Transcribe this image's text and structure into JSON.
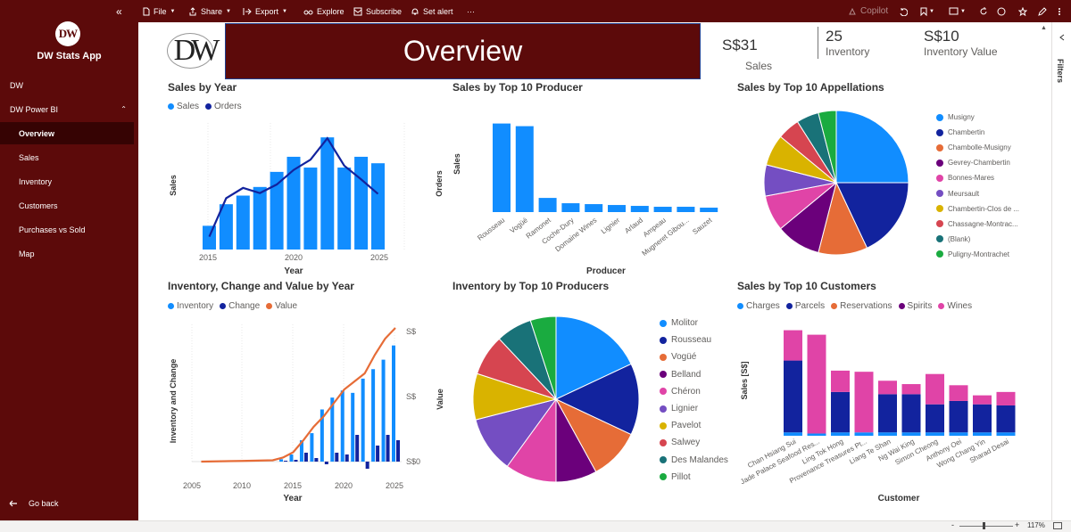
{
  "app": {
    "title": "DW Stats App",
    "logo_text": "DW"
  },
  "nav": {
    "collapse_icon": "«",
    "items": [
      {
        "label": "DW"
      },
      {
        "label": "DW Power BI",
        "chevron": "⌃"
      },
      {
        "label": "Overview"
      },
      {
        "label": "Sales"
      },
      {
        "label": "Inventory"
      },
      {
        "label": "Customers"
      },
      {
        "label": "Purchases vs Sold"
      },
      {
        "label": "Map"
      }
    ],
    "go_back": "Go back"
  },
  "toolbar": {
    "file": "File",
    "share": "Share",
    "export": "Export",
    "explore": "Explore",
    "subscribe": "Subscribe",
    "set_alert": "Set alert",
    "more": "···",
    "copilot": "Copilot"
  },
  "filters": {
    "label": "Filters"
  },
  "status": {
    "zoom": "117%",
    "minus": "-",
    "plus": "+"
  },
  "header": {
    "logo": "DW",
    "banner": "Overview",
    "kpis": [
      {
        "value": "S$31",
        "label": "Sales"
      },
      {
        "value": "25",
        "label": "Inventory"
      },
      {
        "value": "S$10",
        "label": "Inventory Value"
      }
    ]
  },
  "colors": {
    "accent": "#5c0a0a",
    "nav_active": "#360303",
    "blue": "#118dff",
    "navy": "#12239e",
    "orange": "#e66c37",
    "purple": "#6b007b",
    "pink": "#e044a7",
    "violet": "#744ec2",
    "gold": "#d9b300",
    "red": "#d64550",
    "teal": "#197278",
    "green": "#1aab40"
  },
  "chart_data": [
    {
      "id": "sales_by_year",
      "type": "bar+line",
      "title": "Sales by Year",
      "legend": [
        "Sales",
        "Orders"
      ],
      "x": [
        2015,
        2016,
        2017,
        2018,
        2019,
        2020,
        2021,
        2022,
        2023,
        2024,
        2025
      ],
      "x_ticks": [
        "2015",
        "2020",
        "2025"
      ],
      "xlabel": "Year",
      "ylabel": "Sales",
      "series": [
        {
          "name": "Sales",
          "type": "bar",
          "values": [
            2.2,
            4.2,
            5.0,
            5.8,
            7.2,
            8.6,
            7.6,
            10.4,
            7.6,
            8.6,
            8.0
          ]
        },
        {
          "name": "Orders",
          "type": "line",
          "values": [
            1.5,
            6.0,
            7.2,
            6.6,
            7.6,
            9.3,
            10.5,
            13.0,
            9.8,
            8.2,
            6.5
          ]
        }
      ]
    },
    {
      "id": "sales_by_producer",
      "type": "bar",
      "title": "Sales by Top 10 Producer",
      "categories": [
        "Rousseau",
        "Vogüé",
        "Ramonet",
        "Coche-Dury",
        "Domaine Wines",
        "Lignier",
        "Arlaud",
        "Ampeau",
        "Mugneret Gibou...",
        "Sauzet"
      ],
      "values": [
        100,
        97,
        16,
        10,
        9,
        8,
        7,
        6,
        6,
        5
      ],
      "xlabel": "Producer",
      "ylabel": "Orders",
      "inner_label": "Sales"
    },
    {
      "id": "sales_by_appellation",
      "type": "pie",
      "title": "Sales by Top 10 Appellations",
      "categories": [
        "Musigny",
        "Chambertin",
        "Chambolle-Musigny",
        "Gevrey-Chambertin",
        "Bonnes-Mares",
        "Meursault",
        "Chambertin-Clos de ...",
        "Chassagne-Montrac...",
        "(Blank)",
        "Puligny-Montrachet"
      ],
      "values": [
        25,
        18,
        11,
        10,
        8,
        7,
        7,
        5,
        5,
        4
      ]
    },
    {
      "id": "inventory_change_value",
      "type": "bar+line",
      "title": "Inventory, Change and Value by Year",
      "legend": [
        "Inventory",
        "Change",
        "Value"
      ],
      "x_ticks": [
        "2005",
        "2010",
        "2015",
        "2020",
        "2025"
      ],
      "xlabel": "Year",
      "ylabel": "Inventory and Change",
      "y2_ticks": [
        "S$",
        "S$",
        "S$0"
      ],
      "years": [
        2014,
        2015,
        2016,
        2017,
        2018,
        2019,
        2020,
        2021,
        2022,
        2023,
        2024,
        2025
      ],
      "series": [
        {
          "name": "Inventory",
          "type": "bar",
          "values": [
            2,
            6,
            18,
            24,
            44,
            54,
            60,
            58,
            70,
            78,
            86,
            98
          ]
        },
        {
          "name": "Change",
          "type": "bar",
          "values": [
            1,
            2,
            10,
            4,
            -3,
            10,
            8,
            30,
            -8,
            18,
            30,
            24
          ]
        },
        {
          "name": "Value",
          "type": "line",
          "x": [
            2006,
            2010,
            2013,
            2014,
            2015,
            2016,
            2017,
            2018,
            2019,
            2020,
            2021,
            2022,
            2023,
            2024,
            2025
          ],
          "values": [
            0,
            0.5,
            1,
            3,
            7,
            16,
            26,
            34,
            44,
            54,
            60,
            66,
            80,
            92,
            100
          ]
        }
      ]
    },
    {
      "id": "inventory_by_producer",
      "type": "pie",
      "title": "Inventory by Top 10 Producers",
      "ylabel": "Value",
      "categories": [
        "Molitor",
        "Rousseau",
        "Vogüé",
        "Belland",
        "Chéron",
        "Lignier",
        "Pavelot",
        "Salwey",
        "Des Malandes",
        "Pillot"
      ],
      "values": [
        18,
        14,
        10,
        8,
        10,
        11,
        9,
        8,
        7,
        5
      ]
    },
    {
      "id": "sales_by_customer",
      "type": "stacked_bar",
      "title": "Sales by Top 10 Customers",
      "legend": [
        "Charges",
        "Parcels",
        "Reservations",
        "Spirits",
        "Wines"
      ],
      "categories": [
        "Chan Hsiang Sui",
        "Jade Palace Seafood Res...",
        "Ling Tok Hong",
        "Provenance Treasures Pt...",
        "Liang Te Shan",
        "Ng Wai King",
        "Simon Cheong",
        "Anthony Oei",
        "Wong Chang Yin",
        "Sharad Desai"
      ],
      "xlabel": "Customer",
      "ylabel": "Sales [S$]",
      "series": [
        {
          "name": "Charges",
          "values": [
            0.3,
            0.2,
            0.3,
            0.3,
            0.3,
            0.3,
            0.3,
            0.3,
            0.3,
            0.3
          ]
        },
        {
          "name": "Parcels",
          "values": [
            6.4,
            0,
            3.6,
            0,
            3.4,
            3.4,
            2.5,
            2.8,
            2.5,
            2.4
          ]
        },
        {
          "name": "Reservations",
          "values": [
            0,
            0,
            0,
            0,
            0,
            0,
            0,
            0,
            0,
            0
          ]
        },
        {
          "name": "Spirits",
          "values": [
            0,
            0,
            0,
            0,
            0,
            0,
            0,
            0,
            0,
            0
          ]
        },
        {
          "name": "Wines",
          "values": [
            2.7,
            8.8,
            1.9,
            5.4,
            1.2,
            0.9,
            2.7,
            1.4,
            0.8,
            1.2
          ]
        }
      ]
    }
  ]
}
